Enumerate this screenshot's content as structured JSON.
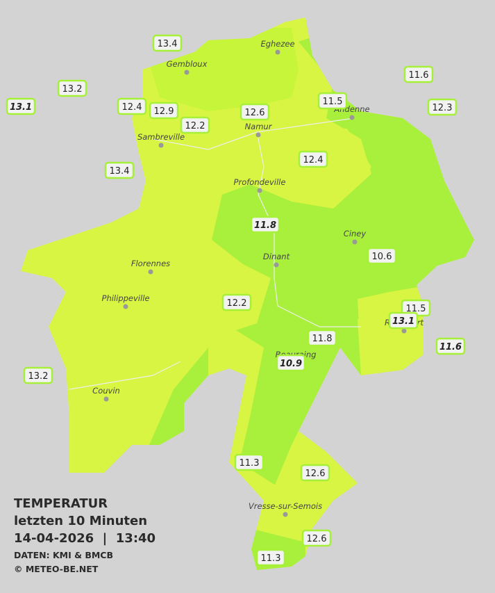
{
  "title": "TEMPERATUR",
  "subtitle": "letzten 10 Minuten",
  "datetime": "14-04-2026  |  13:40",
  "source": "DATEN: KMI & BMCB",
  "credit": "© METEO-BE.NET",
  "towns": [
    "Eghezee",
    "Gembloux",
    "Andenne",
    "Namur",
    "Sambreville",
    "Profondeville",
    "Ciney",
    "Dinant",
    "Florennes",
    "Philippeville",
    "Rochefort",
    "Beauraing",
    "Couvin",
    "Vresse-sur-Semois"
  ],
  "stations": [
    13.4,
    11.6,
    13.2,
    13.1,
    12.4,
    12.9,
    12.2,
    12.6,
    11.5,
    12.3,
    13.4,
    12.4,
    11.8,
    10.6,
    12.2,
    11.5,
    13.1,
    11.6,
    11.8,
    10.9,
    13.2,
    11.3,
    12.6,
    12.6,
    11.3
  ]
}
